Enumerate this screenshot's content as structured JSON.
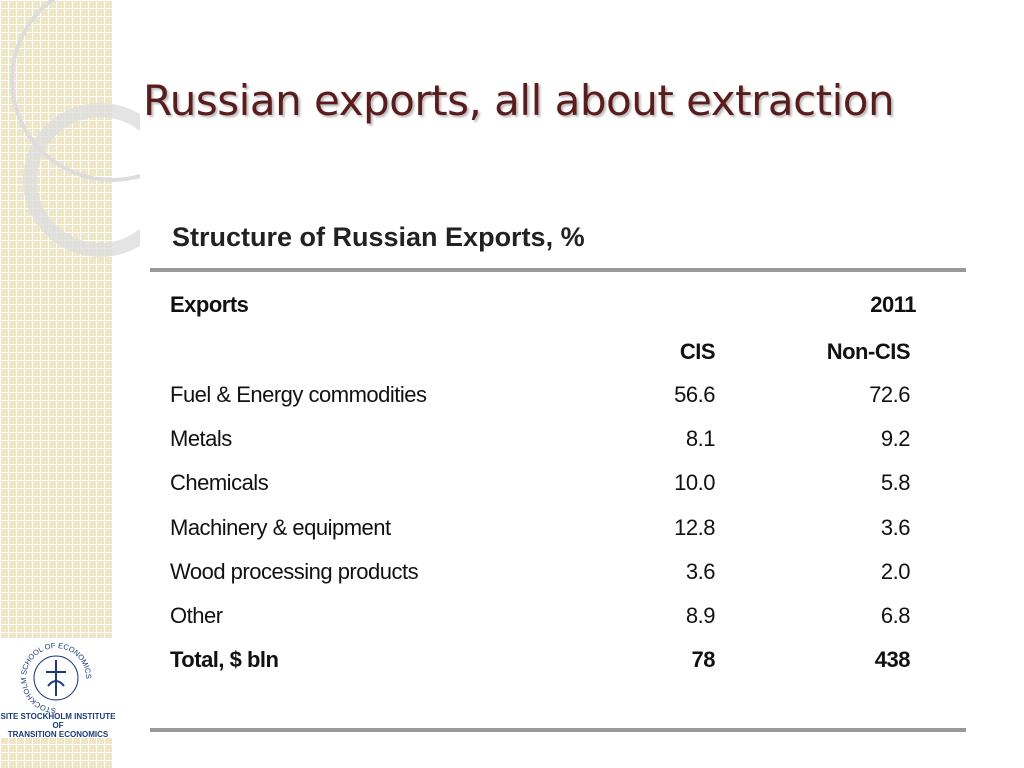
{
  "title": "Russian exports, all about extraction",
  "table": {
    "title": "Structure of Russian Exports, %",
    "header": [
      "Exports",
      "2011"
    ],
    "subheader": [
      "CIS",
      "Non-CIS"
    ],
    "rows": [
      [
        "Fuel & Energy commodities",
        "56.6",
        "72.6"
      ],
      [
        "Metals",
        "8.1",
        "9.2"
      ],
      [
        "Chemicals",
        "10.0",
        "5.8"
      ],
      [
        "Machinery & equipment",
        "12.8",
        "3.6"
      ],
      [
        "Wood processing products",
        "3.6",
        "2.0"
      ],
      [
        "Other",
        "8.9",
        "6.8"
      ]
    ],
    "total": [
      "Total, $ bln",
      "78",
      "438"
    ]
  },
  "logo": {
    "ring": "STOCKHOLM SCHOOL OF ECONOMICS",
    "caption": [
      "SITE STOCKHOLM INSTITUTE OF",
      "TRANSITION ECONOMICS"
    ]
  }
}
